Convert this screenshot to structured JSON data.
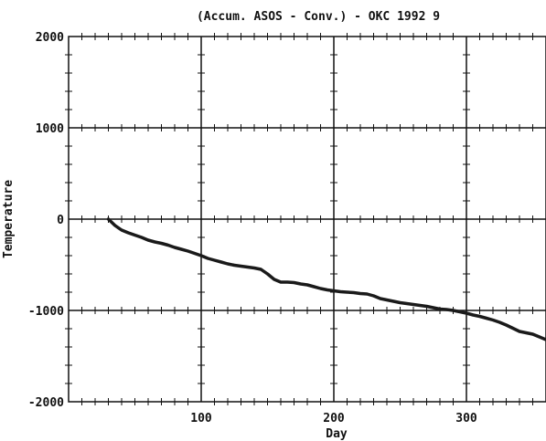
{
  "chart_data": {
    "type": "line",
    "title": "(Accum. ASOS - Conv.) - OKC   1992  9",
    "xlabel": "Day",
    "ylabel": "Temperature",
    "xlim": [
      0,
      360
    ],
    "ylim": [
      -2000,
      2000
    ],
    "x_ticks": [
      100,
      200,
      300
    ],
    "x_tick_labels": [
      "100",
      "200",
      "300"
    ],
    "y_ticks": [
      2000,
      1000,
      0,
      -1000,
      -2000
    ],
    "y_tick_labels": [
      "2000",
      "1000",
      "0",
      "-1000",
      "-2000"
    ],
    "grid": true,
    "legend": "none",
    "line_color": "#1a1a1a",
    "series": [
      {
        "x": [
          30,
          35,
          40,
          45,
          50,
          55,
          60,
          65,
          70,
          75,
          80,
          85,
          90,
          95,
          100,
          105,
          110,
          115,
          120,
          125,
          130,
          135,
          140,
          145,
          150,
          155,
          160,
          165,
          170,
          175,
          180,
          185,
          190,
          195,
          200,
          205,
          210,
          215,
          220,
          225,
          230,
          235,
          240,
          245,
          250,
          255,
          260,
          265,
          270,
          275,
          280,
          285,
          290,
          295,
          300,
          305,
          310,
          315,
          320,
          325,
          330,
          335,
          340,
          345,
          350,
          355,
          360
        ],
        "values": [
          0,
          -70,
          -120,
          -150,
          -175,
          -200,
          -230,
          -250,
          -265,
          -285,
          -310,
          -330,
          -350,
          -375,
          -400,
          -430,
          -450,
          -470,
          -490,
          -505,
          -515,
          -525,
          -535,
          -550,
          -600,
          -660,
          -690,
          -690,
          -695,
          -710,
          -720,
          -740,
          -760,
          -775,
          -785,
          -795,
          -800,
          -805,
          -815,
          -820,
          -840,
          -870,
          -885,
          -900,
          -915,
          -925,
          -935,
          -945,
          -955,
          -970,
          -985,
          -990,
          -1000,
          -1015,
          -1030,
          -1050,
          -1065,
          -1085,
          -1105,
          -1130,
          -1160,
          -1195,
          -1230,
          -1245,
          -1260,
          -1290,
          -1320
        ]
      }
    ]
  }
}
